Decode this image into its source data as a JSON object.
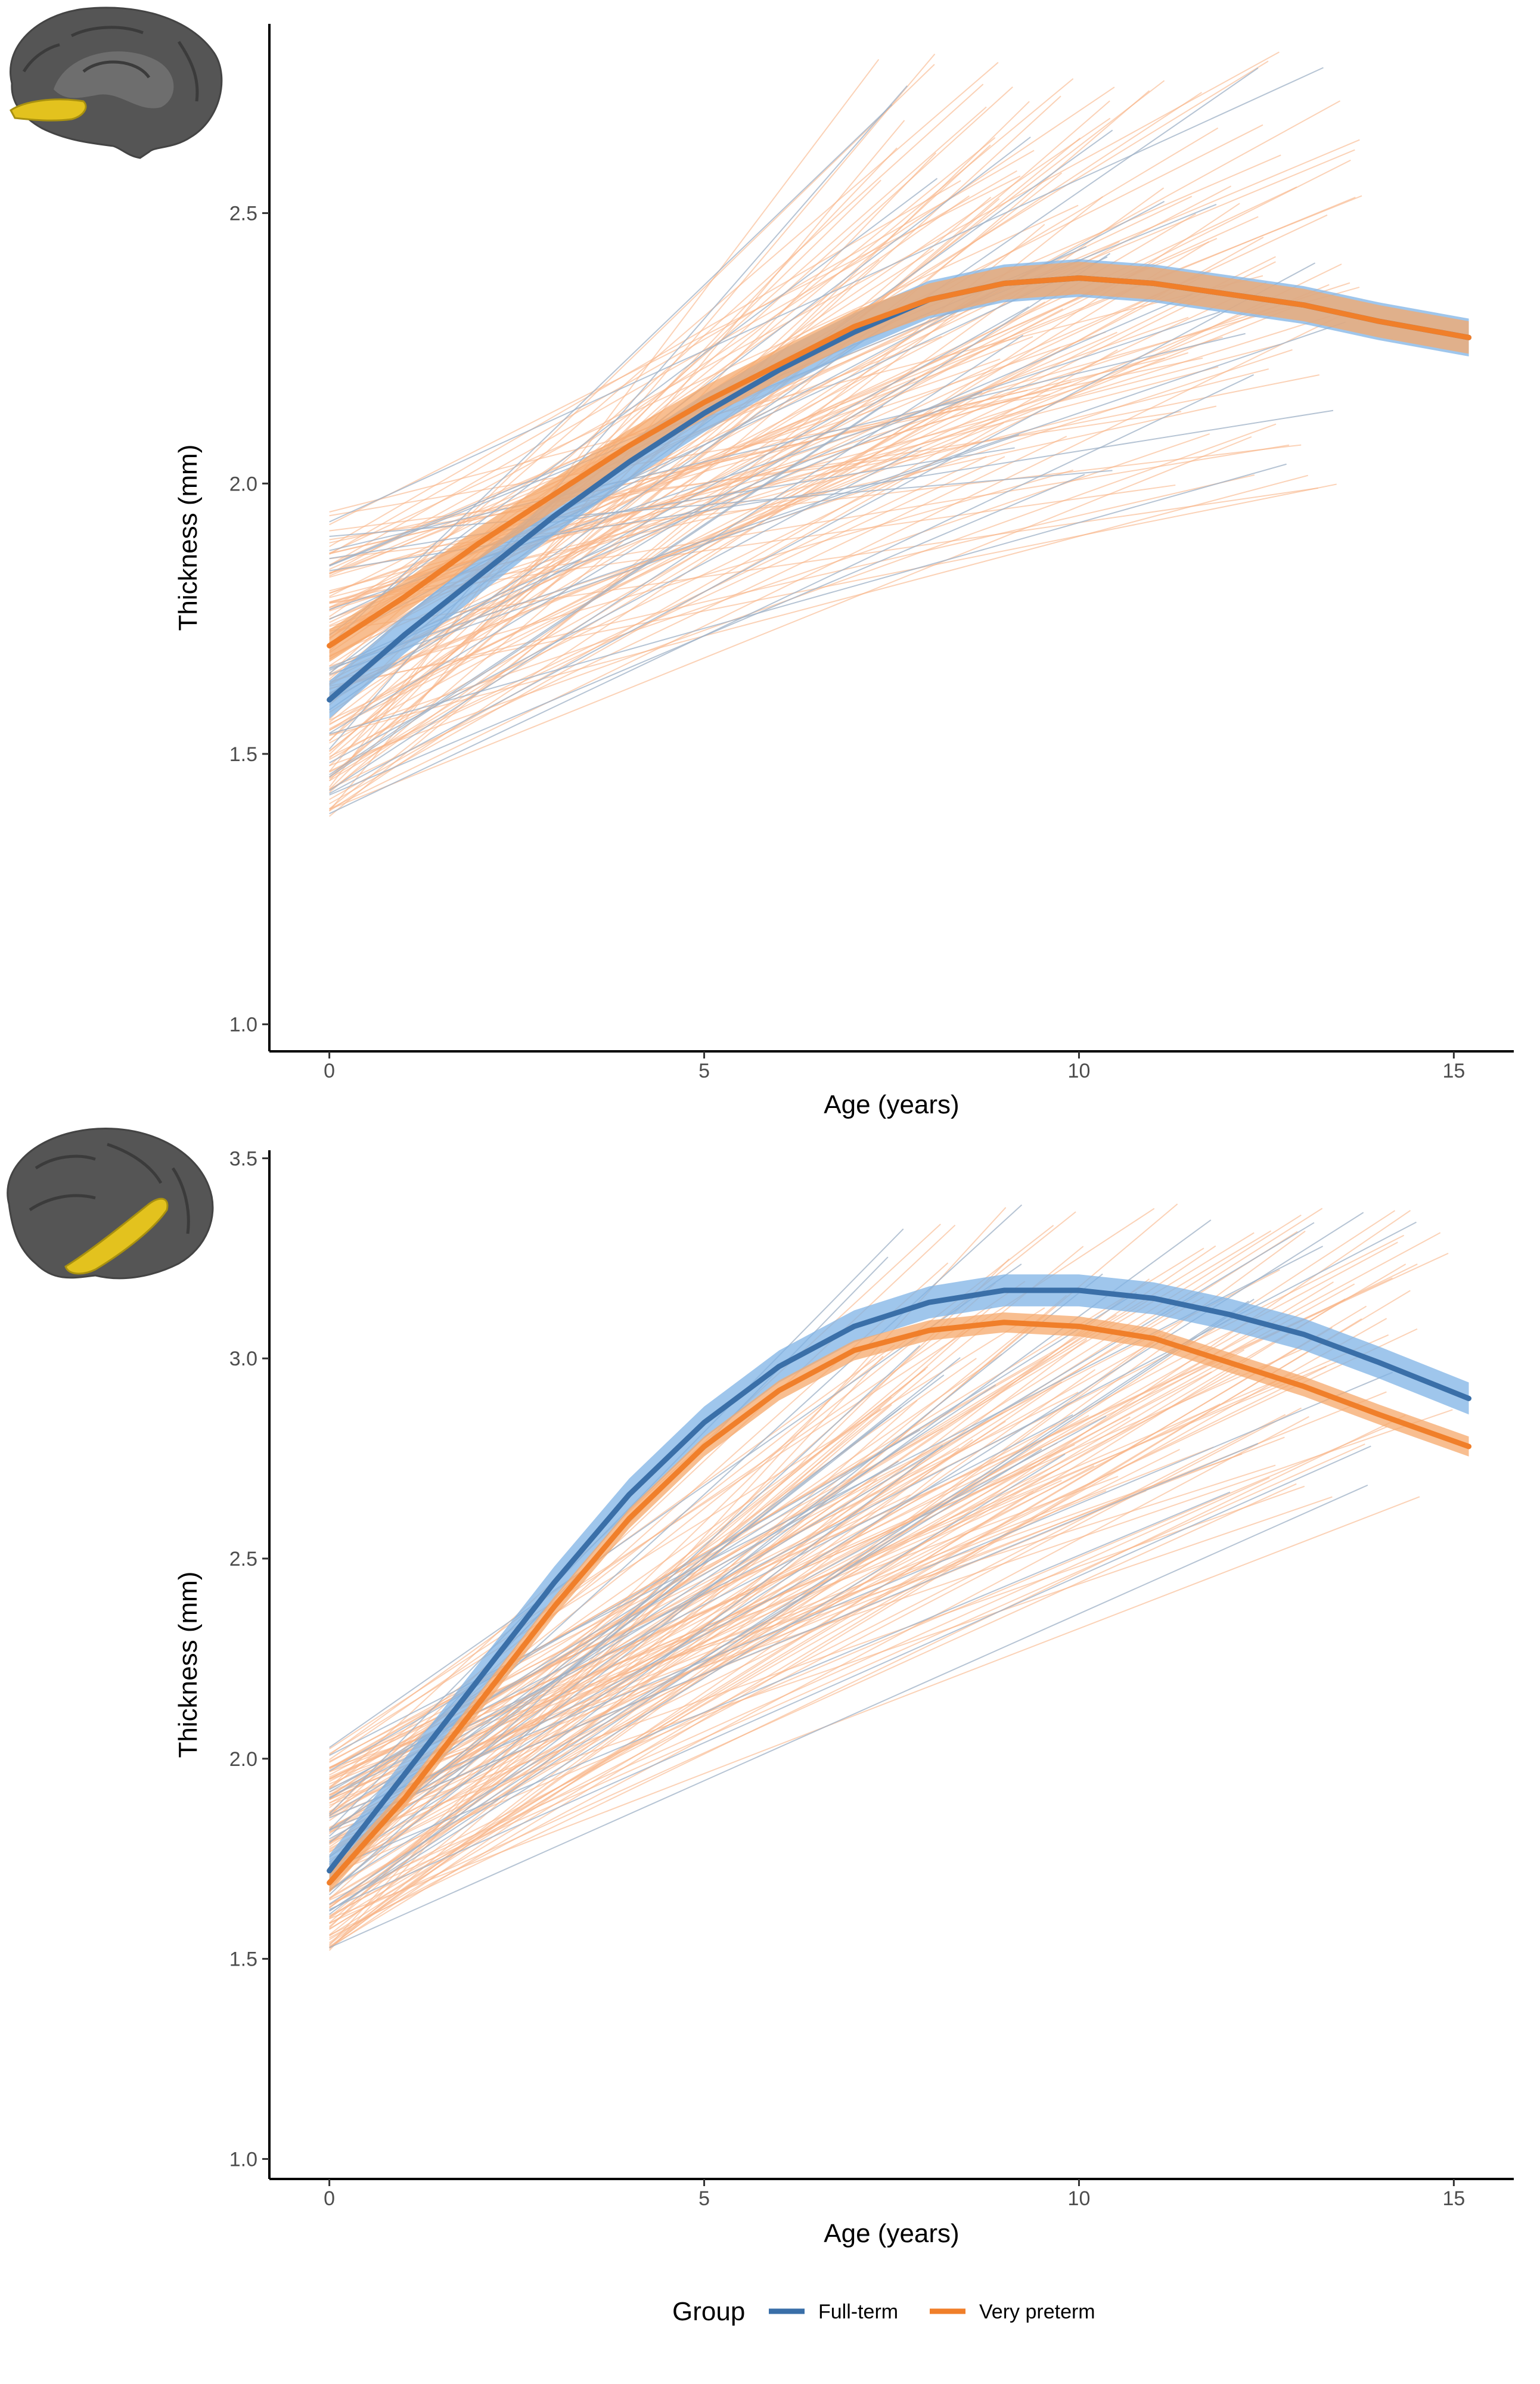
{
  "colors": {
    "full_term": "#3A6FA8",
    "full_term_band": "#7FB3E6",
    "full_term_spaghetti": "#9DB0C6",
    "very_preterm": "#F07F2A",
    "very_preterm_band": "#F5A86B",
    "very_preterm_spaghetti": "#F9B487",
    "axis": "#000000",
    "tick_text": "#4d4d4d"
  },
  "legend": {
    "title": "Group",
    "items": [
      {
        "label": "Full-term",
        "color": "#3A6FA8"
      },
      {
        "label": "Very preterm",
        "color": "#F07F2A"
      }
    ]
  },
  "chart_data": [
    {
      "type": "line",
      "panel": "top",
      "brain_region_icon": "medial-brain-icon",
      "xlabel": "Age (years)",
      "ylabel": "Thickness (mm)",
      "xlim": [
        -0.8,
        15.8
      ],
      "ylim": [
        0.95,
        2.85
      ],
      "xticks": [
        0,
        5,
        10,
        15
      ],
      "yticks": [
        1.0,
        1.5,
        2.0,
        2.5
      ],
      "tick_labels_x": [
        "0",
        "5",
        "10",
        "15"
      ],
      "tick_labels_y": [
        "1.0",
        "1.5",
        "2.0",
        "2.5"
      ],
      "series": [
        {
          "name": "Full-term",
          "x": [
            0,
            1,
            2,
            3,
            4,
            5,
            6,
            7,
            8,
            9,
            10,
            11,
            12,
            13,
            14,
            15.2
          ],
          "y": [
            1.6,
            1.72,
            1.83,
            1.94,
            2.04,
            2.13,
            2.21,
            2.28,
            2.34,
            2.37,
            2.38,
            2.37,
            2.35,
            2.33,
            2.3,
            2.27
          ],
          "band": 0.035
        },
        {
          "name": "Very preterm",
          "x": [
            0,
            1,
            2,
            3,
            4,
            5,
            6,
            7,
            8,
            9,
            10,
            11,
            12,
            13,
            14,
            15.2
          ],
          "y": [
            1.7,
            1.79,
            1.89,
            1.98,
            2.07,
            2.15,
            2.22,
            2.29,
            2.34,
            2.37,
            2.38,
            2.37,
            2.35,
            2.33,
            2.3,
            2.27
          ],
          "band": 0.03
        }
      ],
      "individual_trajectories": {
        "full_term_count": 30,
        "very_preterm_count": 120,
        "baseline_age_range": [
          0,
          0
        ],
        "followup_age_range": [
          7.3,
          13.8
        ],
        "baseline_thickness_range": [
          1.38,
          1.95
        ],
        "followup_thickness_range": [
          1.98,
          2.8
        ]
      }
    },
    {
      "type": "line",
      "panel": "bottom",
      "brain_region_icon": "lateral-brain-icon",
      "xlabel": "Age (years)",
      "ylabel": "Thickness (mm)",
      "xlim": [
        -0.8,
        15.8
      ],
      "ylim": [
        0.95,
        3.52
      ],
      "xticks": [
        0,
        5,
        10,
        15
      ],
      "yticks": [
        1.0,
        1.5,
        2.0,
        2.5,
        3.0,
        3.5
      ],
      "tick_labels_x": [
        "0",
        "5",
        "10",
        "15"
      ],
      "tick_labels_y": [
        "1.0",
        "1.5",
        "2.0",
        "2.5",
        "3.0",
        "3.5"
      ],
      "series": [
        {
          "name": "Full-term",
          "x": [
            0,
            1,
            2,
            3,
            4,
            5,
            6,
            7,
            8,
            9,
            10,
            11,
            12,
            13,
            14,
            15.2
          ],
          "y": [
            1.72,
            1.96,
            2.2,
            2.44,
            2.66,
            2.84,
            2.98,
            3.08,
            3.14,
            3.17,
            3.17,
            3.15,
            3.11,
            3.06,
            2.99,
            2.9
          ],
          "band": 0.04
        },
        {
          "name": "Very preterm",
          "x": [
            0,
            1,
            2,
            3,
            4,
            5,
            6,
            7,
            8,
            9,
            10,
            11,
            12,
            13,
            14,
            15.2
          ],
          "y": [
            1.69,
            1.9,
            2.14,
            2.38,
            2.6,
            2.78,
            2.92,
            3.02,
            3.07,
            3.09,
            3.08,
            3.05,
            2.99,
            2.93,
            2.86,
            2.78
          ],
          "band": 0.025
        }
      ],
      "individual_trajectories": {
        "full_term_count": 30,
        "very_preterm_count": 120,
        "baseline_age_range": [
          0,
          0
        ],
        "followup_age_range": [
          7.3,
          15.0
        ],
        "baseline_thickness_range": [
          1.52,
          2.03
        ],
        "followup_thickness_range": [
          2.65,
          3.4
        ]
      }
    }
  ]
}
